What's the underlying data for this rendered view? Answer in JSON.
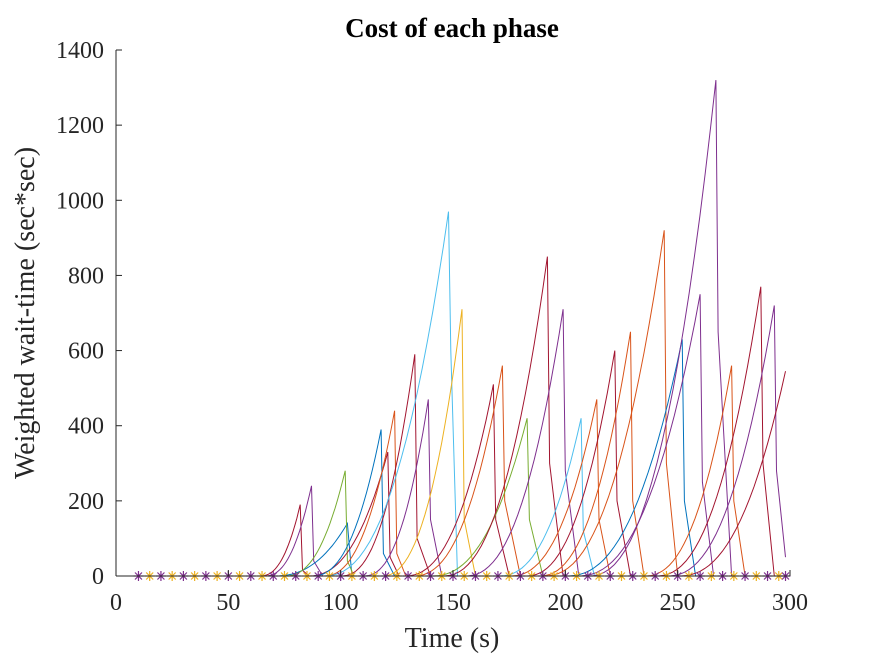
{
  "chart_data": {
    "type": "line",
    "title": "Cost of each phase",
    "xlabel": "Time (s)",
    "ylabel": "Weighted wait-time (sec*sec)",
    "xlim": [
      0,
      300
    ],
    "ylim": [
      0,
      1400
    ],
    "xticks": [
      0,
      50,
      100,
      150,
      200,
      250,
      300
    ],
    "yticks": [
      0,
      200,
      400,
      600,
      800,
      1000,
      1200,
      1400
    ],
    "grid": false,
    "legend": "none",
    "colors": [
      "#0072BD",
      "#D95319",
      "#EDB120",
      "#7E2F8E",
      "#77AC30",
      "#4DBEEE",
      "#A2142F"
    ],
    "series": [
      {
        "color": "#A2142F",
        "points": [
          [
            64,
            0
          ],
          [
            82,
            190
          ],
          [
            83,
            15
          ],
          [
            86,
            0
          ]
        ]
      },
      {
        "color": "#7E2F8E",
        "points": [
          [
            66,
            0
          ],
          [
            87,
            240
          ],
          [
            88,
            40
          ],
          [
            92,
            0
          ]
        ]
      },
      {
        "color": "#0072BD",
        "points": [
          [
            70,
            0
          ],
          [
            103,
            140
          ],
          [
            105,
            0
          ]
        ]
      },
      {
        "color": "#77AC30",
        "points": [
          [
            75,
            0
          ],
          [
            102,
            280
          ],
          [
            103,
            40
          ],
          [
            106,
            0
          ]
        ]
      },
      {
        "color": "#A2142F",
        "points": [
          [
            85,
            0
          ],
          [
            121,
            330
          ],
          [
            122,
            50
          ],
          [
            126,
            0
          ]
        ]
      },
      {
        "color": "#0072BD",
        "points": [
          [
            87,
            0
          ],
          [
            118,
            390
          ],
          [
            119,
            60
          ],
          [
            124,
            0
          ]
        ]
      },
      {
        "color": "#D95319",
        "points": [
          [
            92,
            0
          ],
          [
            124,
            440
          ],
          [
            125,
            60
          ],
          [
            129,
            0
          ]
        ]
      },
      {
        "color": "#A2142F",
        "points": [
          [
            100,
            0
          ],
          [
            133,
            590
          ],
          [
            134,
            100
          ],
          [
            140,
            0
          ]
        ]
      },
      {
        "color": "#7E2F8E",
        "points": [
          [
            110,
            0
          ],
          [
            139,
            470
          ],
          [
            140,
            150
          ],
          [
            145,
            0
          ]
        ]
      },
      {
        "color": "#4DBEEE",
        "points": [
          [
            92,
            0
          ],
          [
            148,
            970
          ],
          [
            149,
            600
          ],
          [
            152,
            0
          ]
        ]
      },
      {
        "color": "#EDB120",
        "points": [
          [
            118,
            0
          ],
          [
            154,
            710
          ],
          [
            155,
            150
          ],
          [
            160,
            0
          ]
        ]
      },
      {
        "color": "#A2142F",
        "points": [
          [
            128,
            0
          ],
          [
            168,
            510
          ],
          [
            169,
            150
          ],
          [
            175,
            0
          ]
        ]
      },
      {
        "color": "#D95319",
        "points": [
          [
            132,
            0
          ],
          [
            172,
            560
          ],
          [
            173,
            200
          ],
          [
            180,
            0
          ]
        ]
      },
      {
        "color": "#77AC30",
        "points": [
          [
            140,
            0
          ],
          [
            183,
            420
          ],
          [
            184,
            150
          ],
          [
            190,
            0
          ]
        ]
      },
      {
        "color": "#A2142F",
        "points": [
          [
            145,
            0
          ],
          [
            192,
            850
          ],
          [
            193,
            300
          ],
          [
            199,
            0
          ]
        ]
      },
      {
        "color": "#7E2F8E",
        "points": [
          [
            155,
            0
          ],
          [
            199,
            710
          ],
          [
            200,
            280
          ],
          [
            206,
            0
          ]
        ]
      },
      {
        "color": "#4DBEEE",
        "points": [
          [
            170,
            0
          ],
          [
            207,
            420
          ],
          [
            208,
            120
          ],
          [
            213,
            0
          ]
        ]
      },
      {
        "color": "#D95319",
        "points": [
          [
            175,
            0
          ],
          [
            214,
            470
          ],
          [
            215,
            150
          ],
          [
            220,
            0
          ]
        ]
      },
      {
        "color": "#A2142F",
        "points": [
          [
            182,
            0
          ],
          [
            222,
            600
          ],
          [
            223,
            200
          ],
          [
            229,
            0
          ]
        ]
      },
      {
        "color": "#D95319",
        "points": [
          [
            188,
            0
          ],
          [
            229,
            650
          ],
          [
            230,
            200
          ],
          [
            235,
            0
          ]
        ]
      },
      {
        "color": "#D95319",
        "points": [
          [
            190,
            0
          ],
          [
            244,
            920
          ],
          [
            245,
            300
          ],
          [
            250,
            0
          ]
        ]
      },
      {
        "color": "#0072BD",
        "points": [
          [
            200,
            0
          ],
          [
            252,
            630
          ],
          [
            253,
            200
          ],
          [
            258,
            0
          ]
        ]
      },
      {
        "color": "#7E2F8E",
        "points": [
          [
            205,
            0
          ],
          [
            260,
            750
          ],
          [
            261,
            250
          ],
          [
            266,
            0
          ]
        ]
      },
      {
        "color": "#7E2F8E",
        "points": [
          [
            210,
            0
          ],
          [
            267,
            1320
          ],
          [
            268,
            650
          ],
          [
            274,
            0
          ]
        ]
      },
      {
        "color": "#D95319",
        "points": [
          [
            235,
            0
          ],
          [
            274,
            560
          ],
          [
            275,
            200
          ],
          [
            280,
            0
          ]
        ]
      },
      {
        "color": "#A2142F",
        "points": [
          [
            240,
            0
          ],
          [
            287,
            770
          ],
          [
            288,
            300
          ],
          [
            293,
            0
          ]
        ]
      },
      {
        "color": "#7E2F8E",
        "points": [
          [
            245,
            0
          ],
          [
            293,
            720
          ],
          [
            294,
            280
          ],
          [
            298,
            50
          ]
        ]
      },
      {
        "color": "#A2142F",
        "points": [
          [
            250,
            0
          ],
          [
            298,
            545
          ]
        ]
      }
    ],
    "markers": {
      "purple_star_x": [
        10,
        20,
        30,
        40,
        50,
        60,
        70,
        80,
        90,
        100,
        110,
        120,
        130,
        140,
        150,
        160,
        170,
        180,
        190,
        200,
        210,
        220,
        230,
        240,
        250,
        260,
        270,
        280,
        290,
        298
      ],
      "orange_star_x": [
        15,
        25,
        35,
        45,
        55,
        65,
        75,
        85,
        95,
        105,
        115,
        125,
        135,
        145,
        155,
        165,
        175,
        185,
        195,
        205,
        215,
        225,
        235,
        245,
        255,
        265,
        275,
        285,
        295
      ]
    }
  }
}
